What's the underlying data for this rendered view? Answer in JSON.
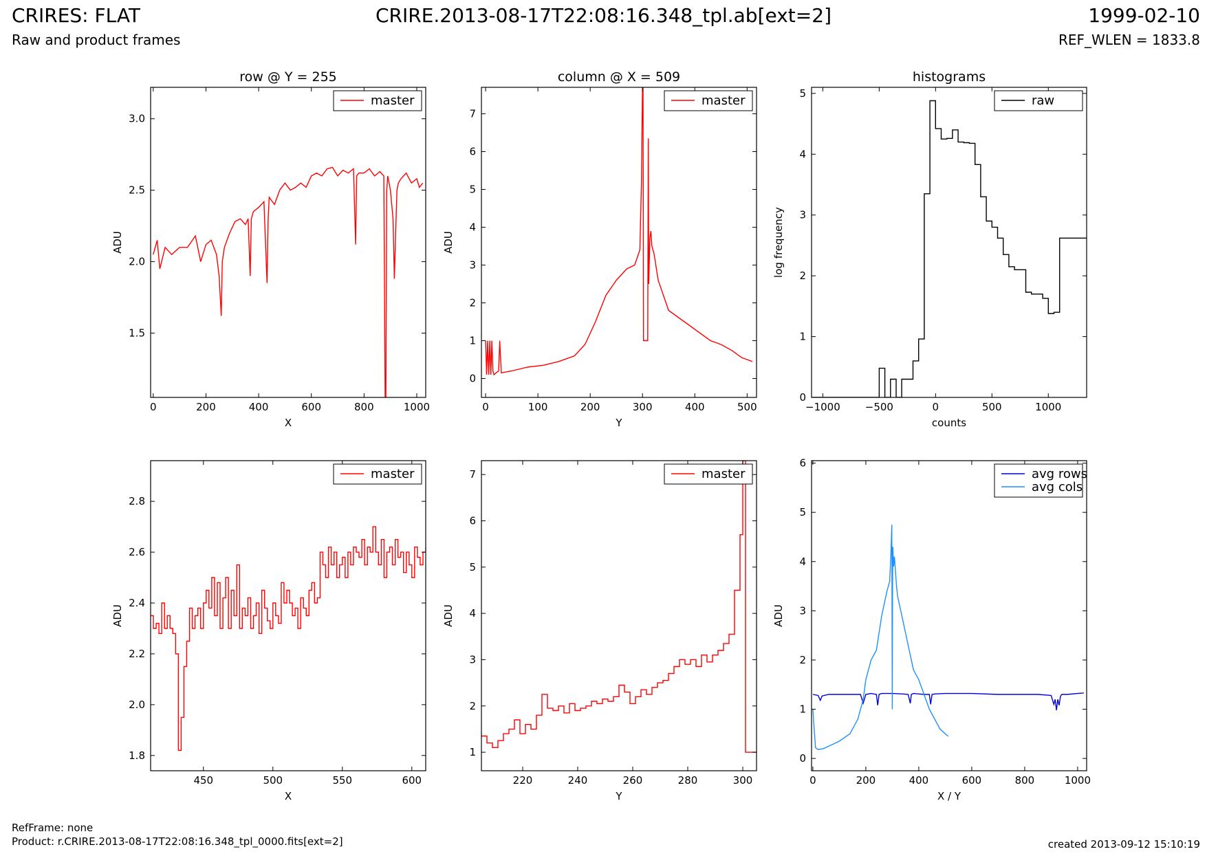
{
  "header": {
    "title": "CRIRES: FLAT",
    "subtitle": "Raw and product frames",
    "file": "CRIRE.2013-08-17T22:08:16.348_tpl.ab[ext=2]",
    "date": "1999-02-10",
    "ref_wlen": "REF_WLEN = 1833.8"
  },
  "footer": {
    "refframe": "RefFrame: none",
    "product": "Product: r.CRIRE.2013-08-17T22:08:16.348_tpl_0000.fits[ext=2]",
    "created": "created 2013-09-12 15:10:19"
  },
  "colors": {
    "master": "#ff0000",
    "raw": "#000000",
    "avg_rows": "#0000dd",
    "avg_cols": "#1e90ff"
  },
  "chart_data": [
    {
      "type": "line",
      "title": "row @ Y = 255",
      "xlabel": "X",
      "ylabel": "ADU",
      "xlim": [
        -10,
        1034
      ],
      "ylim": [
        1.05,
        3.22
      ],
      "xticks": [
        0,
        200,
        400,
        600,
        800,
        1000
      ],
      "yticks": [
        1.5,
        2.0,
        2.5,
        3.0
      ],
      "ytick_decimals": 1,
      "legend": "top-right",
      "series": [
        {
          "name": "master",
          "color": "#ff0000",
          "step": false,
          "x": [
            0,
            15,
            25,
            45,
            70,
            100,
            130,
            160,
            180,
            200,
            220,
            240,
            250,
            258,
            262,
            270,
            290,
            310,
            330,
            350,
            360,
            368,
            372,
            380,
            400,
            420,
            432,
            436,
            440,
            460,
            480,
            500,
            520,
            540,
            560,
            580,
            600,
            620,
            640,
            660,
            680,
            700,
            720,
            740,
            760,
            768,
            772,
            780,
            800,
            820,
            840,
            860,
            875,
            880,
            883,
            886,
            890,
            900,
            910,
            915,
            920,
            925,
            930,
            940,
            960,
            980,
            1000,
            1010,
            1023
          ],
          "y": [
            2.05,
            2.15,
            1.95,
            2.1,
            2.05,
            2.1,
            2.1,
            2.18,
            2.0,
            2.12,
            2.15,
            2.05,
            1.9,
            1.62,
            2.0,
            2.1,
            2.2,
            2.28,
            2.3,
            2.26,
            2.3,
            1.9,
            2.3,
            2.35,
            2.38,
            2.42,
            1.85,
            2.3,
            2.45,
            2.4,
            2.5,
            2.55,
            2.5,
            2.52,
            2.55,
            2.52,
            2.6,
            2.62,
            2.6,
            2.65,
            2.66,
            2.6,
            2.64,
            2.62,
            2.65,
            2.12,
            2.6,
            2.62,
            2.62,
            2.65,
            2.6,
            2.63,
            2.6,
            1.05,
            1.05,
            2.5,
            2.6,
            2.5,
            2.3,
            1.88,
            2.2,
            2.5,
            2.55,
            2.58,
            2.62,
            2.55,
            2.58,
            2.52,
            2.55
          ]
        }
      ]
    },
    {
      "type": "line",
      "title": "column @ X = 509",
      "xlabel": "Y",
      "ylabel": "ADU",
      "xlim": [
        -8,
        518
      ],
      "ylim": [
        -0.5,
        7.7
      ],
      "xticks": [
        0,
        100,
        200,
        300,
        400,
        500
      ],
      "yticks": [
        0,
        1,
        2,
        3,
        4,
        5,
        6,
        7
      ],
      "ytick_decimals": 0,
      "legend": "top-right",
      "series": [
        {
          "name": "master",
          "color": "#ff0000",
          "step": false,
          "x": [
            0,
            2,
            4,
            6,
            8,
            10,
            12,
            14,
            16,
            20,
            25,
            27,
            30,
            50,
            80,
            110,
            140,
            170,
            190,
            210,
            230,
            250,
            270,
            285,
            290,
            295,
            298,
            300,
            301,
            302,
            303,
            304,
            305,
            306,
            308,
            310,
            311,
            312,
            314,
            316,
            318,
            322,
            330,
            350,
            370,
            390,
            410,
            430,
            450,
            470,
            490,
            500,
            510
          ],
          "y": [
            1.0,
            0.1,
            1.0,
            0.1,
            1.0,
            0.1,
            1.0,
            0.2,
            0.1,
            0.15,
            0.2,
            1.0,
            0.15,
            0.2,
            0.3,
            0.35,
            0.45,
            0.6,
            0.9,
            1.5,
            2.2,
            2.6,
            2.9,
            3.0,
            3.2,
            3.4,
            5.2,
            7.7,
            7.7,
            1.0,
            1.0,
            1.0,
            1.0,
            1.0,
            1.0,
            1.0,
            6.35,
            2.5,
            3.7,
            3.9,
            3.5,
            3.3,
            2.6,
            1.8,
            1.6,
            1.4,
            1.2,
            1.0,
            0.9,
            0.75,
            0.55,
            0.5,
            0.45
          ]
        }
      ]
    },
    {
      "type": "line",
      "title": "histograms",
      "xlabel": "counts",
      "ylabel": "log frequency",
      "xlim": [
        -1100,
        1340
      ],
      "ylim": [
        0,
        5.1
      ],
      "xticks": [
        -1000,
        -500,
        0,
        500,
        1000
      ],
      "yticks": [
        0,
        1,
        2,
        3,
        4,
        5
      ],
      "ytick_decimals": 0,
      "legend": "top-right",
      "series": [
        {
          "name": "raw",
          "color": "#000000",
          "step": true,
          "x": [
            -1100,
            -1050,
            -1000,
            -950,
            -900,
            -850,
            -800,
            -750,
            -700,
            -650,
            -600,
            -550,
            -500,
            -450,
            -400,
            -350,
            -300,
            -250,
            -200,
            -150,
            -100,
            -50,
            0,
            50,
            100,
            150,
            200,
            250,
            300,
            350,
            400,
            450,
            500,
            550,
            600,
            650,
            700,
            750,
            800,
            850,
            900,
            950,
            1000,
            1050,
            1100,
            1150,
            1200,
            1250,
            1300,
            1340
          ],
          "y": [
            0,
            0,
            0,
            0,
            0,
            0,
            0,
            0,
            0,
            0,
            0,
            0,
            0.48,
            0,
            0.3,
            0,
            0.3,
            0.3,
            0.6,
            0.96,
            3.35,
            4.88,
            4.42,
            4.25,
            4.26,
            4.4,
            4.2,
            4.19,
            4.18,
            3.83,
            3.3,
            2.9,
            2.8,
            2.62,
            2.35,
            2.15,
            2.1,
            2.1,
            1.73,
            1.7,
            1.7,
            1.63,
            1.38,
            1.4,
            2.62,
            2.62,
            2.62,
            2.62,
            2.62,
            2.62
          ]
        }
      ]
    },
    {
      "type": "line",
      "title": "",
      "xlabel": "X",
      "ylabel": "ADU",
      "xlim": [
        412,
        610
      ],
      "ylim": [
        1.74,
        2.96
      ],
      "xticks": [
        450,
        500,
        550,
        600
      ],
      "yticks": [
        1.8,
        2.0,
        2.2,
        2.4,
        2.6,
        2.8
      ],
      "ytick_decimals": 1,
      "legend": "top-right",
      "series": [
        {
          "name": "master",
          "color": "#ff0000",
          "step": true,
          "x": [
            412,
            414,
            416,
            418,
            420,
            422,
            424,
            426,
            428,
            430,
            432,
            434,
            436,
            438,
            440,
            442,
            444,
            446,
            448,
            450,
            452,
            454,
            456,
            458,
            460,
            462,
            464,
            466,
            468,
            470,
            472,
            474,
            476,
            478,
            480,
            482,
            484,
            486,
            488,
            490,
            492,
            494,
            496,
            498,
            500,
            502,
            504,
            506,
            508,
            510,
            512,
            514,
            516,
            518,
            520,
            522,
            524,
            526,
            528,
            530,
            532,
            534,
            536,
            538,
            540,
            542,
            544,
            546,
            548,
            550,
            552,
            554,
            556,
            558,
            560,
            562,
            564,
            566,
            568,
            570,
            572,
            574,
            576,
            578,
            580,
            582,
            584,
            586,
            588,
            590,
            592,
            594,
            596,
            598,
            600,
            602,
            604,
            606,
            608,
            610
          ],
          "y": [
            2.35,
            2.3,
            2.32,
            2.28,
            2.4,
            2.3,
            2.35,
            2.3,
            2.28,
            2.2,
            1.82,
            1.95,
            2.15,
            2.25,
            2.38,
            2.3,
            2.35,
            2.38,
            2.3,
            2.4,
            2.45,
            2.38,
            2.5,
            2.35,
            2.48,
            2.3,
            2.42,
            2.5,
            2.3,
            2.45,
            2.35,
            2.55,
            2.3,
            2.38,
            2.35,
            2.42,
            2.3,
            2.35,
            2.4,
            2.28,
            2.45,
            2.38,
            2.33,
            2.3,
            2.4,
            2.35,
            2.32,
            2.48,
            2.4,
            2.45,
            2.4,
            2.35,
            2.38,
            2.3,
            2.42,
            2.38,
            2.35,
            2.45,
            2.48,
            2.4,
            2.42,
            2.6,
            2.55,
            2.5,
            2.62,
            2.55,
            2.6,
            2.5,
            2.55,
            2.58,
            2.5,
            2.6,
            2.55,
            2.62,
            2.6,
            2.58,
            2.65,
            2.55,
            2.62,
            2.6,
            2.7,
            2.6,
            2.55,
            2.65,
            2.5,
            2.6,
            2.62,
            2.55,
            2.65,
            2.58,
            2.6,
            2.52,
            2.6,
            2.55,
            2.5,
            2.62,
            2.58,
            2.55,
            2.6,
            2.62
          ]
        }
      ]
    },
    {
      "type": "line",
      "title": "",
      "xlabel": "Y",
      "ylabel": "ADU",
      "xlim": [
        205,
        305
      ],
      "ylim": [
        0.6,
        7.3
      ],
      "xticks": [
        220,
        240,
        260,
        280,
        300
      ],
      "yticks": [
        1,
        2,
        3,
        4,
        5,
        6,
        7
      ],
      "ytick_decimals": 0,
      "legend": "top-right",
      "series": [
        {
          "name": "master",
          "color": "#ff0000",
          "step": true,
          "x": [
            205,
            207,
            209,
            211,
            213,
            215,
            217,
            219,
            221,
            223,
            225,
            227,
            229,
            231,
            233,
            235,
            237,
            239,
            241,
            243,
            245,
            247,
            249,
            251,
            253,
            255,
            257,
            259,
            261,
            263,
            265,
            267,
            269,
            271,
            273,
            275,
            277,
            279,
            281,
            283,
            285,
            287,
            289,
            291,
            293,
            295,
            297,
            299,
            300,
            301,
            303,
            305
          ],
          "y": [
            1.35,
            1.2,
            1.1,
            1.25,
            1.4,
            1.5,
            1.7,
            1.4,
            1.6,
            1.5,
            1.8,
            2.25,
            1.95,
            1.9,
            2.0,
            1.85,
            2.05,
            1.9,
            1.95,
            2.0,
            2.1,
            2.05,
            2.15,
            2.1,
            2.2,
            2.45,
            2.3,
            2.05,
            2.2,
            2.35,
            2.25,
            2.4,
            2.5,
            2.55,
            2.7,
            2.85,
            3.0,
            2.9,
            3.0,
            2.85,
            3.1,
            2.95,
            3.1,
            3.2,
            3.35,
            3.55,
            4.5,
            5.7,
            7.3,
            1.0,
            1.0,
            1.0
          ]
        }
      ]
    },
    {
      "type": "line",
      "title": "",
      "xlabel": "X / Y",
      "ylabel": "ADU",
      "xlim": [
        -5,
        1034
      ],
      "ylim": [
        -0.25,
        6.05
      ],
      "xticks": [
        0,
        200,
        400,
        600,
        800,
        1000
      ],
      "yticks": [
        0,
        1,
        2,
        3,
        4,
        5,
        6
      ],
      "ytick_decimals": 0,
      "legend": "top-right",
      "series": [
        {
          "name": "avg rows",
          "color": "#0000dd",
          "step": false,
          "x": [
            0,
            20,
            28,
            35,
            60,
            100,
            150,
            180,
            190,
            200,
            220,
            240,
            245,
            250,
            260,
            300,
            340,
            360,
            368,
            372,
            380,
            400,
            420,
            440,
            445,
            450,
            460,
            500,
            600,
            700,
            800,
            850,
            900,
            910,
            915,
            920,
            925,
            930,
            935,
            940,
            960,
            1000,
            1023
          ],
          "y": [
            1.3,
            1.28,
            1.18,
            1.27,
            1.3,
            1.3,
            1.3,
            1.3,
            1.12,
            1.3,
            1.32,
            1.3,
            1.08,
            1.3,
            1.32,
            1.32,
            1.31,
            1.3,
            1.12,
            1.3,
            1.32,
            1.31,
            1.3,
            1.3,
            1.1,
            1.3,
            1.31,
            1.32,
            1.32,
            1.3,
            1.3,
            1.3,
            1.28,
            1.1,
            1.2,
            0.98,
            1.2,
            1.08,
            1.26,
            1.3,
            1.3,
            1.32,
            1.33
          ]
        },
        {
          "name": "avg cols",
          "color": "#1e90ff",
          "step": false,
          "x": [
            0,
            5,
            10,
            20,
            40,
            60,
            100,
            140,
            170,
            190,
            200,
            220,
            240,
            260,
            280,
            290,
            295,
            298,
            300,
            301,
            302,
            305,
            308,
            312,
            316,
            320,
            340,
            360,
            380,
            400,
            420,
            440,
            460,
            480,
            500,
            511
          ],
          "y": [
            1.0,
            0.6,
            0.22,
            0.18,
            0.2,
            0.25,
            0.35,
            0.5,
            0.8,
            1.2,
            1.6,
            2.0,
            2.2,
            2.9,
            3.4,
            3.6,
            4.2,
            4.75,
            1.0,
            3.5,
            4.3,
            3.9,
            4.1,
            3.8,
            3.5,
            3.3,
            2.8,
            2.3,
            1.8,
            1.6,
            1.3,
            1.0,
            0.8,
            0.6,
            0.5,
            0.45
          ]
        }
      ]
    }
  ]
}
